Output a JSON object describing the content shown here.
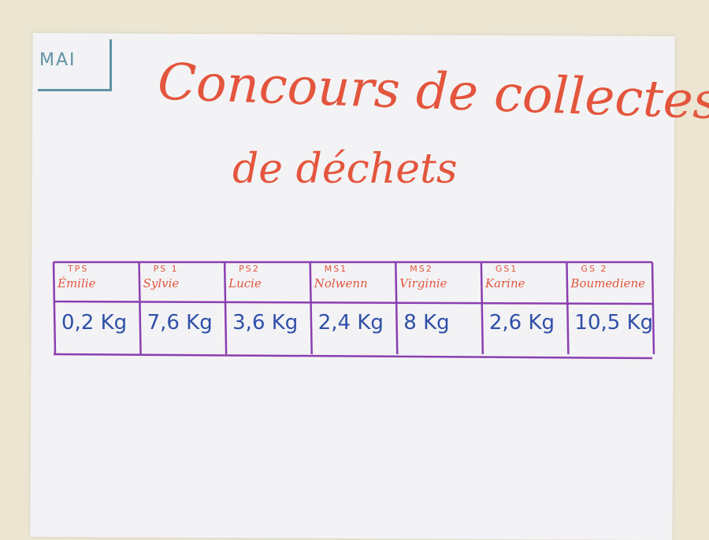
{
  "tag": "MAI",
  "title": {
    "line1": "Concours de collectes",
    "line2": "de déchets"
  },
  "table": {
    "columns": [
      {
        "class": "TPS",
        "name": "Émilie",
        "weight": "0,2 Kg"
      },
      {
        "class": "PS 1",
        "name": "Sylvie",
        "weight": "7,6 Kg"
      },
      {
        "class": "PS2",
        "name": "Lucie",
        "weight": "3,6 Kg"
      },
      {
        "class": "MS1",
        "name": "Nolwenn",
        "weight": "2,4 Kg"
      },
      {
        "class": "MS2",
        "name": "Virginie",
        "weight": "8 Kg"
      },
      {
        "class": "GS1",
        "name": "Karine",
        "weight": "2,6 Kg"
      },
      {
        "class": "GS 2",
        "name": "Boumediene",
        "weight": "10,5 Kg"
      }
    ]
  }
}
